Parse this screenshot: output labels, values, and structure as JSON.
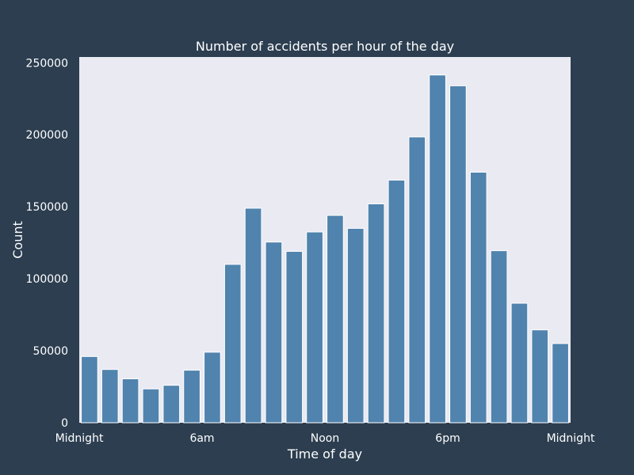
{
  "chart_data": {
    "type": "bar",
    "title": "Number of accidents per hour of the day",
    "xlabel": "Time of day",
    "ylabel": "Count",
    "categories": [
      "0",
      "1",
      "2",
      "3",
      "4",
      "5",
      "6",
      "7",
      "8",
      "9",
      "10",
      "11",
      "12",
      "13",
      "14",
      "15",
      "16",
      "17",
      "18",
      "19",
      "20",
      "21",
      "22",
      "23"
    ],
    "values": [
      46000,
      37000,
      30500,
      23500,
      26000,
      36500,
      49000,
      110000,
      149000,
      125500,
      119000,
      132500,
      144000,
      135000,
      152000,
      168500,
      198500,
      241500,
      234000,
      174000,
      119500,
      83000,
      64500,
      55000
    ],
    "x_tick_labels": [
      "Midnight",
      "6am",
      "Noon",
      "6pm",
      "Midnight"
    ],
    "x_tick_hours": [
      0,
      6,
      12,
      18,
      24
    ],
    "y_ticks": [
      0,
      50000,
      100000,
      150000,
      200000,
      250000
    ],
    "ylim": [
      0,
      254000
    ],
    "grid": false,
    "colors": {
      "background": "#2c3e50",
      "plot_area": "#eaeaf2",
      "bar": "#5083ae",
      "bar_edge": "#ffffff",
      "text": "#ffffff"
    }
  }
}
